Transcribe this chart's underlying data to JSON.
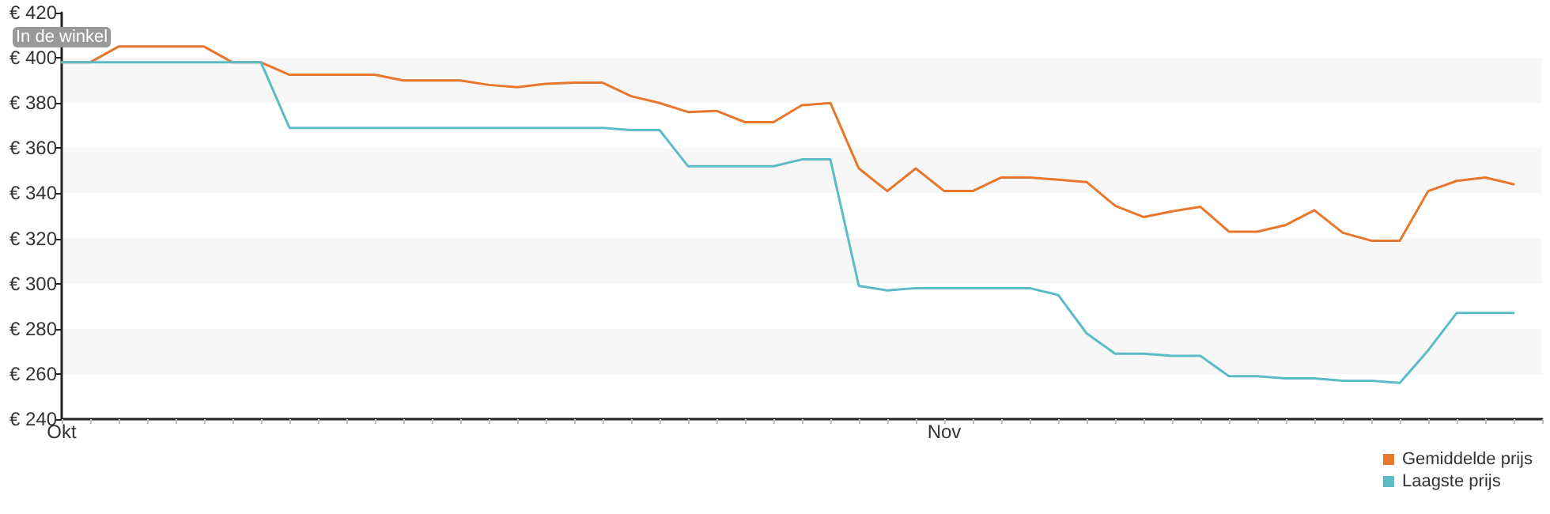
{
  "chart_data": {
    "type": "line",
    "categories": [
      "Okt",
      null,
      null,
      null,
      null,
      null,
      null,
      null,
      null,
      null,
      null,
      null,
      null,
      null,
      null,
      null,
      null,
      null,
      null,
      null,
      null,
      null,
      null,
      null,
      null,
      null,
      null,
      null,
      null,
      null,
      null,
      "Nov",
      null,
      null,
      null,
      null,
      null,
      null,
      null,
      null,
      null,
      null,
      null,
      null,
      null,
      null,
      null,
      null,
      null,
      null,
      null,
      null,
      null
    ],
    "series": [
      {
        "name": "Gemiddelde prijs",
        "color": "#e8772e",
        "values": [
          398,
          398,
          405,
          405,
          405,
          405,
          398,
          398,
          392.5,
          392.5,
          392.5,
          392.5,
          390,
          390,
          390,
          388,
          387,
          388.5,
          389,
          389,
          383,
          380,
          376,
          376.5,
          371.5,
          371.5,
          379,
          380,
          351,
          341,
          351,
          341,
          341,
          347,
          347,
          346,
          345,
          334.5,
          329.5,
          332,
          334,
          323,
          323,
          326,
          332.5,
          322.5,
          319,
          319,
          341,
          345.5,
          347,
          344,
          null
        ]
      },
      {
        "name": "Laagste prijs",
        "color": "#5bbcc8",
        "values": [
          398,
          398,
          398,
          398,
          398,
          398,
          398,
          398,
          369,
          369,
          369,
          369,
          369,
          369,
          369,
          369,
          369,
          369,
          369,
          369,
          368,
          368,
          352,
          352,
          352,
          352,
          355,
          355,
          299,
          297,
          298,
          298,
          298,
          298,
          298,
          295,
          278,
          269,
          269,
          268,
          268,
          259,
          259,
          258,
          258,
          257,
          257,
          256,
          270.5,
          287,
          287,
          287,
          null
        ]
      }
    ],
    "ylim": [
      240,
      420
    ],
    "yticks": [
      {
        "value": 240,
        "label": "€ 240"
      },
      {
        "value": 260,
        "label": "€ 260"
      },
      {
        "value": 280,
        "label": "€ 280"
      },
      {
        "value": 300,
        "label": "€ 300"
      },
      {
        "value": 320,
        "label": "€ 320"
      },
      {
        "value": 340,
        "label": "€ 340"
      },
      {
        "value": 360,
        "label": "€ 360"
      },
      {
        "value": 380,
        "label": "€ 380"
      },
      {
        "value": 400,
        "label": "€ 400"
      },
      {
        "value": 420,
        "label": "€ 420"
      }
    ],
    "legend": "bottom right",
    "marker": "none",
    "line_style": "solid",
    "annotations": [
      "In de winkel"
    ]
  }
}
